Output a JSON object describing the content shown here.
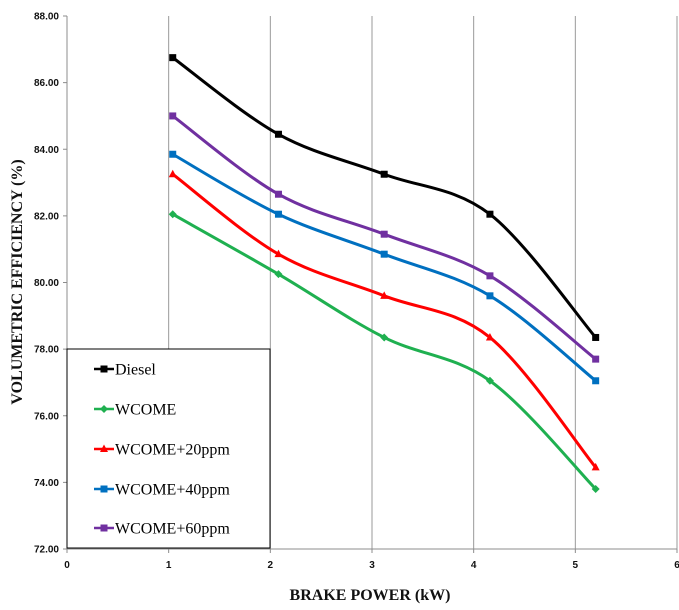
{
  "chart_data": {
    "type": "line",
    "title": "",
    "xlabel": "BRAKE POWER (kW)",
    "ylabel": "VOLUMETRIC EFFICIENCY (%)",
    "xlim": [
      0,
      6
    ],
    "ylim": [
      72,
      88
    ],
    "x_ticks": [
      "0",
      "1",
      "2",
      "3",
      "4",
      "5",
      "6"
    ],
    "y_ticks": [
      "72.00",
      "74.00",
      "76.00",
      "78.00",
      "80.00",
      "82.00",
      "84.00",
      "86.00",
      "88.00"
    ],
    "x": [
      1.04,
      2.08,
      3.12,
      4.16,
      5.2
    ],
    "grid": "vertical lines",
    "legend_position": "bottom-left",
    "smooth": true,
    "series": [
      {
        "name": "Diesel",
        "color": "#000000",
        "marker": "square",
        "values": [
          86.75,
          84.45,
          83.25,
          82.05,
          78.35
        ]
      },
      {
        "name": "WCOME",
        "color": "#1fb050",
        "marker": "diamond",
        "values": [
          82.05,
          80.25,
          78.35,
          77.05,
          73.8
        ]
      },
      {
        "name": "WCOME+20ppm",
        "color": "#ff0000",
        "marker": "triangle",
        "values": [
          83.25,
          80.85,
          79.6,
          78.35,
          74.45
        ]
      },
      {
        "name": "WCOME+40ppm",
        "color": "#0070c0",
        "marker": "square",
        "values": [
          83.85,
          82.05,
          80.85,
          79.6,
          77.05
        ]
      },
      {
        "name": "WCOME+60ppm",
        "color": "#7030a0",
        "marker": "square",
        "values": [
          85.0,
          82.65,
          81.45,
          80.2,
          77.7
        ]
      }
    ]
  }
}
